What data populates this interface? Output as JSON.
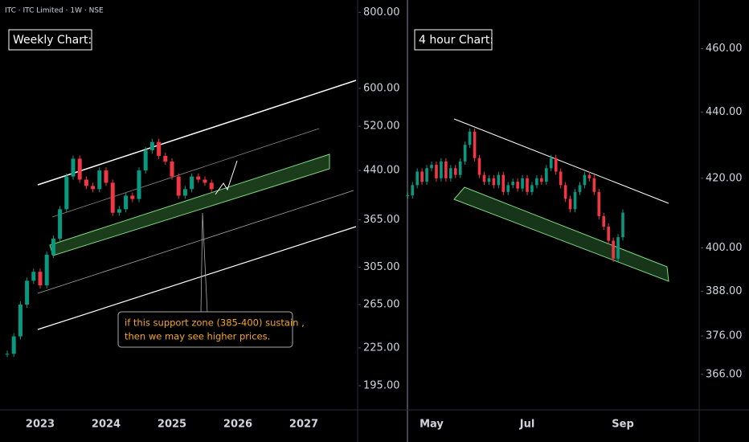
{
  "header": {
    "title": "ITC · ITC Limited · 1W · NSE"
  },
  "chart_data": [
    {
      "type": "candlestick",
      "title": "Weekly Chart:",
      "annotations": [
        "if this support zone (385-400) sustain ,",
        "then we may see higher prices."
      ],
      "categories": [
        null,
        null,
        null,
        null,
        null,
        "2023",
        null,
        null,
        null,
        null,
        null,
        null,
        null,
        null,
        null,
        "2024",
        null,
        null,
        null,
        null,
        null,
        null,
        null,
        null,
        null,
        "2025",
        null,
        null,
        null,
        null,
        null,
        null,
        null,
        null,
        null,
        "2026",
        null,
        null,
        null,
        null,
        null,
        null,
        null,
        null,
        null,
        "2027",
        null,
        null,
        null,
        null,
        null,
        null,
        null,
        null
      ],
      "values": [
        220,
        235,
        265,
        290,
        300,
        285,
        320,
        340,
        380,
        430,
        460,
        425,
        415,
        410,
        440,
        420,
        375,
        380,
        400,
        395,
        440,
        475,
        490,
        465,
        455,
        430,
        400,
        410,
        430,
        425,
        420,
        410,
        null,
        null,
        null,
        null,
        null,
        null,
        null,
        null,
        null,
        null,
        null,
        null,
        null,
        null,
        null,
        null,
        null,
        null,
        null,
        null,
        null,
        null
      ],
      "up_color": "#089981",
      "down_color": "#f23645",
      "log_scale": true,
      "ylim": [
        178,
        838
      ],
      "yticks": [
        {
          "value": 800,
          "label": "800.00"
        },
        {
          "value": 600,
          "label": "600.00"
        },
        {
          "value": 520,
          "label": "520.00"
        },
        {
          "value": 440,
          "label": "440.00"
        },
        {
          "value": 365,
          "label": "365.00"
        },
        {
          "value": 305,
          "label": "305.00"
        },
        {
          "value": 265,
          "label": "265.00"
        },
        {
          "value": 225,
          "label": "225.00"
        },
        {
          "value": 195,
          "label": "195.00"
        }
      ]
    },
    {
      "type": "candlestick",
      "title": "4 hour Chart:",
      "categories": [
        null,
        null,
        null,
        null,
        null,
        "May",
        null,
        null,
        null,
        null,
        null,
        null,
        null,
        null,
        null,
        null,
        null,
        null,
        null,
        null,
        null,
        null,
        null,
        null,
        null,
        "Jul",
        null,
        null,
        null,
        null,
        null,
        null,
        null,
        null,
        null,
        null,
        null,
        null,
        null,
        null,
        null,
        null,
        null,
        null,
        null,
        "Sep",
        null,
        null,
        null,
        null,
        null,
        null,
        null,
        null,
        null,
        null,
        null,
        null,
        null,
        null,
        null
      ],
      "values": [
        415,
        418,
        422,
        419,
        423,
        424,
        420,
        425,
        420,
        423,
        421,
        425,
        430,
        434,
        426,
        421,
        419,
        420,
        418,
        421,
        416,
        418,
        419,
        417,
        420,
        416,
        418,
        420,
        419,
        423,
        426,
        422,
        418,
        414,
        411,
        416,
        418,
        421,
        420,
        416,
        409,
        406,
        402,
        397,
        403,
        410,
        null,
        null,
        null,
        null,
        null,
        null,
        null,
        null,
        null,
        null,
        null,
        null,
        null,
        null,
        null
      ],
      "up_color": "#089981",
      "down_color": "#f23645",
      "log_scale": true,
      "ylim": [
        357,
        476
      ],
      "yticks": [
        {
          "value": 460,
          "label": "460.00"
        },
        {
          "value": 440,
          "label": "440.00"
        },
        {
          "value": 420,
          "label": "420.00"
        },
        {
          "value": 400,
          "label": "400.00"
        },
        {
          "value": 388,
          "label": "388.00"
        },
        {
          "value": 376,
          "label": "376.00"
        },
        {
          "value": 366,
          "label": "366.00"
        }
      ]
    }
  ]
}
